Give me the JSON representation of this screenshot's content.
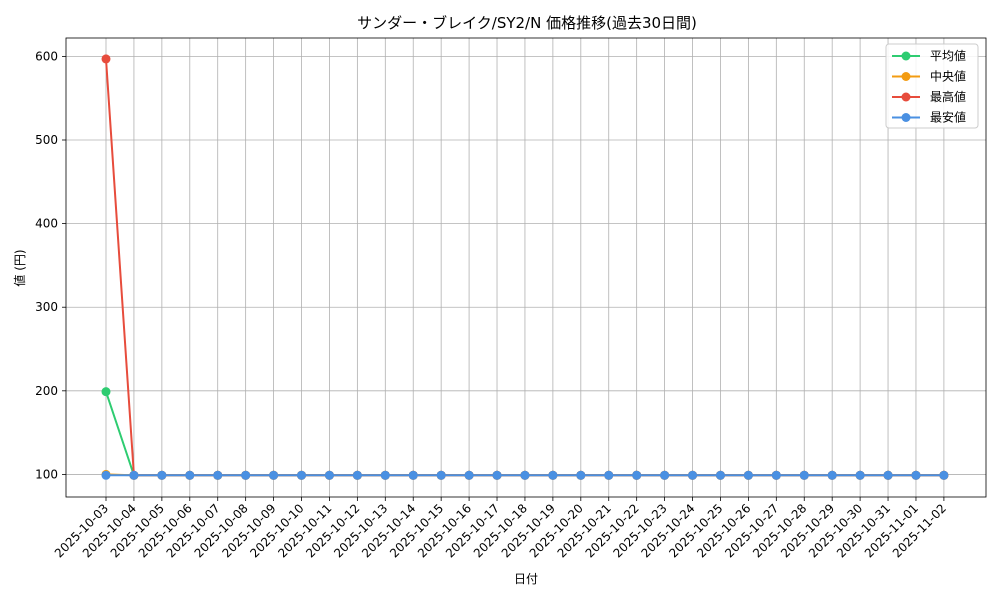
{
  "chart_data": {
    "type": "line",
    "title": "サンダー・ブレイク/SY2/N 価格推移(過去30日間)",
    "xlabel": "日付",
    "ylabel": "値 (円)",
    "categories": [
      "2025-10-03",
      "2025-10-04",
      "2025-10-05",
      "2025-10-06",
      "2025-10-07",
      "2025-10-08",
      "2025-10-09",
      "2025-10-10",
      "2025-10-11",
      "2025-10-12",
      "2025-10-13",
      "2025-10-14",
      "2025-10-15",
      "2025-10-16",
      "2025-10-17",
      "2025-10-18",
      "2025-10-19",
      "2025-10-20",
      "2025-10-21",
      "2025-10-22",
      "2025-10-23",
      "2025-10-24",
      "2025-10-25",
      "2025-10-26",
      "2025-10-27",
      "2025-10-28",
      "2025-10-29",
      "2025-10-30",
      "2025-10-31",
      "2025-11-01",
      "2025-11-02"
    ],
    "yticks": [
      100,
      200,
      300,
      400,
      500,
      600
    ],
    "ylim": [
      73,
      622
    ],
    "grid": true,
    "legend_position": "top-right",
    "series": [
      {
        "name": "平均値",
        "color": "#2ecc71",
        "values": [
          199,
          99,
          99,
          99,
          99,
          99,
          99,
          99,
          99,
          99,
          99,
          99,
          99,
          99,
          99,
          99,
          99,
          99,
          99,
          99,
          99,
          99,
          99,
          99,
          99,
          99,
          99,
          99,
          99,
          99,
          99
        ]
      },
      {
        "name": "中央値",
        "color": "#f39c12",
        "values": [
          100,
          99,
          99,
          99,
          99,
          99,
          99,
          99,
          99,
          99,
          99,
          99,
          99,
          99,
          99,
          99,
          99,
          99,
          99,
          99,
          99,
          99,
          99,
          99,
          99,
          99,
          99,
          99,
          99,
          99,
          99
        ]
      },
      {
        "name": "最高値",
        "color": "#e74c3c",
        "values": [
          597,
          99,
          99,
          99,
          99,
          99,
          99,
          99,
          99,
          99,
          99,
          99,
          99,
          99,
          99,
          99,
          99,
          99,
          99,
          99,
          99,
          99,
          99,
          99,
          99,
          99,
          99,
          99,
          99,
          99,
          99
        ]
      },
      {
        "name": "最安値",
        "color": "#4a90e2",
        "values": [
          99,
          99,
          99,
          99,
          99,
          99,
          99,
          99,
          99,
          99,
          99,
          99,
          99,
          99,
          99,
          99,
          99,
          99,
          99,
          99,
          99,
          99,
          99,
          99,
          99,
          99,
          99,
          99,
          99,
          99,
          99
        ]
      }
    ]
  }
}
